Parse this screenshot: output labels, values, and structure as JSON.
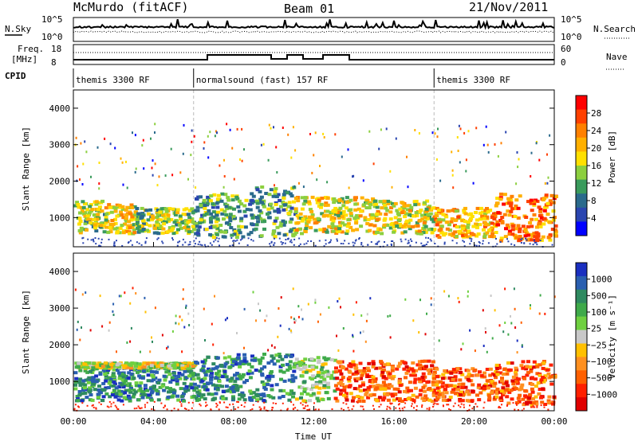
{
  "header": {
    "station": "McMurdo (fitACF)",
    "beam": "Beam 01",
    "date": "21/Nov/2011"
  },
  "params_panel": {
    "nsky_label": "N.Sky",
    "nsky_ticks": [
      "10^5",
      "10^0"
    ],
    "nsearch_label": "N.Search",
    "nsearch_ticks": [
      "10^5",
      "10^0"
    ],
    "freq_label_line1": "Freq.",
    "freq_label_line2": "[MHz]",
    "freq_ticks": [
      "18",
      "8"
    ],
    "nave_label": "Nave",
    "nave_ticks": [
      "60",
      "0"
    ],
    "cpid_label": "CPID",
    "cpid_segments": [
      {
        "label": "themis 3300 RF",
        "start_hour": 0.0,
        "end_hour": 6.0
      },
      {
        "label": "normalsound (fast) 157 RF",
        "start_hour": 6.0,
        "end_hour": 18.0
      },
      {
        "label": "themis 3300 RF",
        "start_hour": 18.0,
        "end_hour": 24.0
      }
    ]
  },
  "chart_data": [
    {
      "type": "heatmap",
      "name": "power",
      "ylabel": "Slant Range [km]",
      "xlim": [
        0,
        24
      ],
      "ylim": [
        200,
        4500
      ],
      "yticks": [
        1000,
        2000,
        3000,
        4000
      ],
      "colorbar_label": "Power [dB]",
      "colorbar_ticks": [
        "28",
        "24",
        "20",
        "16",
        "12",
        "8",
        "4"
      ],
      "colorbar_colors": [
        "#ff0000",
        "#ff4000",
        "#ff8000",
        "#ffb000",
        "#ffe000",
        "#8ccf3f",
        "#3a9b5c",
        "#2a6a8c",
        "#2a45b0",
        "#0000ff"
      ],
      "bands": [
        {
          "t0": 0.0,
          "t1": 1.5,
          "r0": 600,
          "r1": 1500,
          "level": 5
        },
        {
          "t0": 1.5,
          "t1": 3.0,
          "r0": 600,
          "r1": 1400,
          "level": 4
        },
        {
          "t0": 3.0,
          "t1": 6.0,
          "r0": 600,
          "r1": 1300,
          "level": 5
        },
        {
          "t0": 6.0,
          "t1": 9.0,
          "r0": 500,
          "r1": 1700,
          "level": 6
        },
        {
          "t0": 9.0,
          "t1": 11.0,
          "r0": 500,
          "r1": 1900,
          "level": 6
        },
        {
          "t0": 11.0,
          "t1": 15.0,
          "r0": 600,
          "r1": 1600,
          "level": 4
        },
        {
          "t0": 15.0,
          "t1": 18.0,
          "r0": 600,
          "r1": 1500,
          "level": 4
        },
        {
          "t0": 18.0,
          "t1": 21.0,
          "r0": 500,
          "r1": 1300,
          "level": 3
        },
        {
          "t0": 21.0,
          "t1": 24.0,
          "r0": 400,
          "r1": 1700,
          "level": 2
        }
      ]
    },
    {
      "type": "heatmap",
      "name": "velocity",
      "ylabel": "Slant Range [km]",
      "xlabel": "Time UT",
      "xlim": [
        0,
        24
      ],
      "ylim": [
        200,
        4500
      ],
      "yticks": [
        1000,
        2000,
        3000,
        4000
      ],
      "xticks": [
        "00:00",
        "04:00",
        "08:00",
        "12:00",
        "16:00",
        "20:00",
        "00:00"
      ],
      "colorbar_label": "Velocity [m s⁻¹]",
      "colorbar_ticks": [
        "1000",
        "500",
        "100",
        "25",
        "−25",
        "−100",
        "−500",
        "−1000"
      ],
      "colorbar_colors": [
        "#1a2fc0",
        "#2a5fb0",
        "#2f8a60",
        "#3faa4a",
        "#6fd040",
        "#c8c8c8",
        "#ffc000",
        "#ff9020",
        "#ff6000",
        "#ff2000",
        "#e00000"
      ],
      "bands": [
        {
          "t0": 0.0,
          "t1": 6.0,
          "r0": 500,
          "r1": 1400,
          "level": 2
        },
        {
          "t0": 0.0,
          "t1": 6.0,
          "r0": 1400,
          "r1": 1550,
          "level": 5
        },
        {
          "t0": 6.0,
          "t1": 11.0,
          "r0": 500,
          "r1": 1800,
          "level": 2
        },
        {
          "t0": 11.0,
          "t1": 13.0,
          "r0": 500,
          "r1": 1700,
          "level": 4
        },
        {
          "t0": 13.0,
          "t1": 18.0,
          "r0": 500,
          "r1": 1600,
          "level": 8
        },
        {
          "t0": 18.0,
          "t1": 21.0,
          "r0": 500,
          "r1": 1400,
          "level": 8
        },
        {
          "t0": 21.0,
          "t1": 24.0,
          "r0": 400,
          "r1": 1600,
          "level": 8
        }
      ]
    }
  ]
}
